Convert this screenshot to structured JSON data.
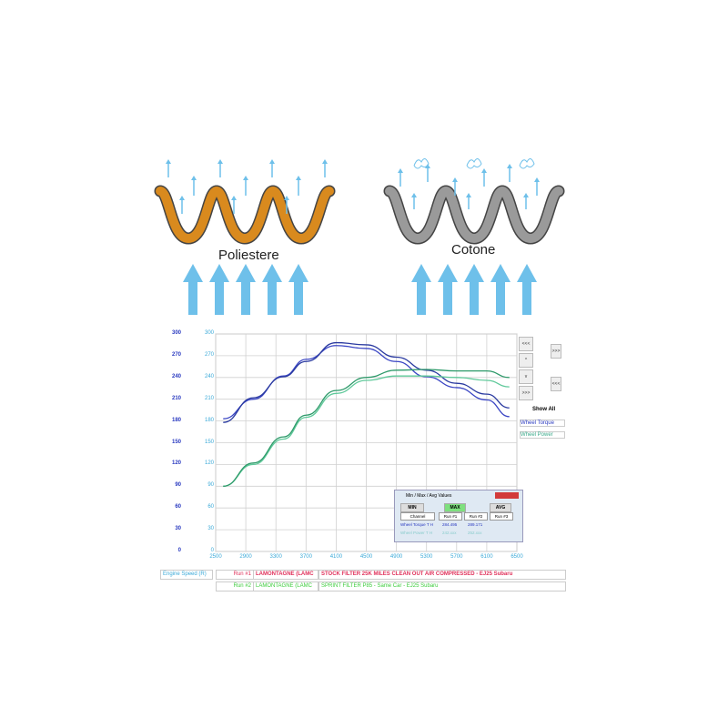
{
  "diagrams": {
    "left_label": "Poliestere",
    "right_label": "Cotone",
    "left_color": "#d98a1e",
    "right_color": "#9a9a9a",
    "arrow_color": "#6ec0ea"
  },
  "side_panel": {
    "show_all": "Show All",
    "channels": [
      "Wheel Torque",
      "Wheel Power"
    ],
    "buttons": [
      "<<<",
      "^",
      "v",
      ">>>",
      ">>>",
      "<<<"
    ]
  },
  "popup": {
    "title": "Min / Max / Avg Values",
    "min": "MIN",
    "max": "MAX",
    "avg": "AVG",
    "columns": [
      "Channel",
      "Run #1",
      "Run #2",
      "Run #3"
    ],
    "rows": [
      {
        "channel": "Wheel Torque T H",
        "run1": "284.495",
        "run2": "289.171"
      },
      {
        "channel": "Wheel Power T H",
        "run1": "242.xxx",
        "run2": "252.xxx"
      }
    ]
  },
  "legend": {
    "x_channel": "Engine Speed (R)",
    "runs": [
      {
        "run": "Run #1",
        "operator": "LAMONTAGNE (LAMC",
        "description": "STOCK FILTER 25K MILES CLEAN OUT AIR COMPRESSED - EJ25 Subaru",
        "color": "#e0305a"
      },
      {
        "run": "Run #2",
        "operator": "LAMONTAGNE (LAMC",
        "description": "SPRINT FILTER P85 - Same Car - EJ25 Subaru",
        "color": "#3ccc3c"
      }
    ]
  },
  "chart_data": {
    "type": "line",
    "xlabel": "",
    "ylabel": "",
    "xlim": [
      2500,
      6500
    ],
    "ylim": [
      0,
      300
    ],
    "x_ticks": [
      "2500",
      "2900",
      "3300",
      "3700",
      "4100",
      "4500",
      "4900",
      "5300",
      "5700",
      "6100",
      "6500"
    ],
    "y_ticks": [
      "0",
      "30",
      "60",
      "90",
      "120",
      "150",
      "180",
      "210",
      "240",
      "270",
      "300"
    ],
    "grid": true,
    "x": [
      2600,
      3000,
      3400,
      3700,
      4100,
      4500,
      4900,
      5300,
      5700,
      6100,
      6400
    ],
    "series": [
      {
        "color": "#3b46c4",
        "values": [
          183,
          210,
          242,
          265,
          284,
          280,
          262,
          241,
          226,
          209,
          186
        ]
      },
      {
        "color": "#2a3aa0",
        "values": [
          178,
          212,
          241,
          262,
          288,
          285,
          268,
          250,
          232,
          217,
          198
        ]
      },
      {
        "color": "#5fc99a",
        "values": [
          90,
          120,
          155,
          185,
          218,
          236,
          242,
          242,
          240,
          236,
          227
        ]
      },
      {
        "color": "#2e9a6a",
        "values": [
          90,
          122,
          158,
          188,
          222,
          240,
          250,
          251,
          249,
          249,
          240
        ]
      }
    ]
  }
}
